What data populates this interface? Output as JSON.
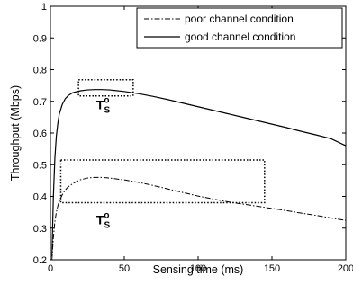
{
  "chart_data": {
    "type": "line",
    "xlabel": "Sensing time (ms)",
    "ylabel": "Throughput (Mbps)",
    "xlim": [
      0,
      200
    ],
    "ylim": [
      0.2,
      1.0
    ],
    "xticks": [
      0,
      50,
      100,
      150,
      200
    ],
    "yticks": [
      0.2,
      0.3,
      0.4,
      0.5,
      0.6,
      0.7,
      0.8,
      0.9,
      1.0
    ],
    "ytick_labels": [
      "0.2",
      "0.3",
      "0.4",
      "0.5",
      "0.6",
      "0.7",
      "0.8",
      "0.9",
      "1"
    ],
    "grid": false,
    "legend_position": "top-right",
    "series": [
      {
        "name": "poor channel condition",
        "style": "dash-dot",
        "x": [
          1,
          2,
          3,
          4,
          5,
          6,
          8,
          10,
          12,
          15,
          20,
          25,
          30,
          35,
          40,
          50,
          60,
          70,
          80,
          90,
          100,
          110,
          120,
          130,
          140,
          150,
          160,
          170,
          180,
          190,
          200
        ],
        "y": [
          0.2,
          0.27,
          0.32,
          0.35,
          0.37,
          0.385,
          0.405,
          0.42,
          0.43,
          0.44,
          0.452,
          0.458,
          0.46,
          0.46,
          0.458,
          0.452,
          0.444,
          0.434,
          0.423,
          0.412,
          0.401,
          0.392,
          0.383,
          0.376,
          0.369,
          0.362,
          0.355,
          0.347,
          0.34,
          0.332,
          0.324
        ]
      },
      {
        "name": "good channel condition",
        "style": "solid",
        "x": [
          1,
          2,
          3,
          4,
          5,
          6,
          8,
          10,
          12,
          15,
          20,
          25,
          30,
          35,
          40,
          50,
          60,
          70,
          80,
          90,
          100,
          110,
          120,
          130,
          140,
          150,
          160,
          170,
          180,
          190,
          200
        ],
        "y": [
          0.21,
          0.4,
          0.52,
          0.59,
          0.63,
          0.66,
          0.69,
          0.708,
          0.718,
          0.727,
          0.733,
          0.736,
          0.737,
          0.737,
          0.736,
          0.731,
          0.724,
          0.715,
          0.705,
          0.694,
          0.683,
          0.672,
          0.661,
          0.65,
          0.639,
          0.628,
          0.617,
          0.605,
          0.594,
          0.582,
          0.56
        ]
      }
    ],
    "regions": [
      {
        "x": [
          19,
          56
        ],
        "y": [
          0.717,
          0.768
        ]
      },
      {
        "x": [
          7,
          145
        ],
        "y": [
          0.38,
          0.515
        ]
      }
    ],
    "annotations": [
      {
        "text": "T",
        "superscript": "o",
        "subscript": "S",
        "x": 31,
        "y": 0.675
      },
      {
        "text": "T",
        "superscript": "o",
        "subscript": "S",
        "x": 31,
        "y": 0.312
      }
    ]
  }
}
